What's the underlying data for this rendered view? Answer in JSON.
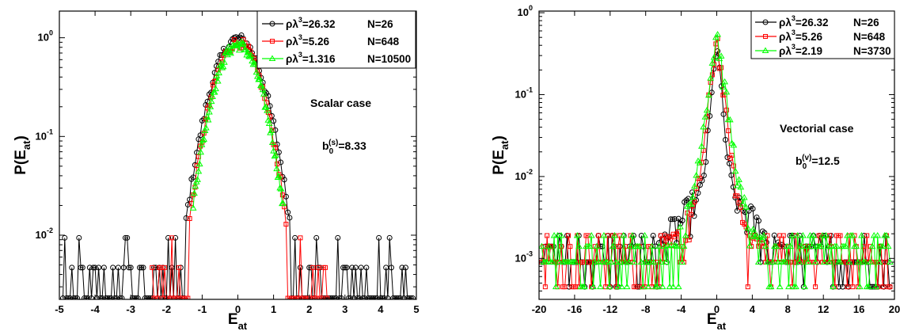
{
  "chart_data": [
    {
      "type": "scatter",
      "panel": "left",
      "xlabel": "E",
      "xlabel_sub": "at",
      "ylabel": "P(E",
      "ylabel_sub": "at",
      "ylabel_close": ")",
      "xlim": [
        -5,
        5
      ],
      "ylim_log10": [
        -2.65,
        0.27
      ],
      "y_scale": "log",
      "x_ticks": [
        "-5",
        "-4",
        "-3",
        "-2",
        "-1",
        "0",
        "1",
        "2",
        "3",
        "4",
        "5"
      ],
      "y_ticks": [
        {
          "base": "10",
          "exp": "0",
          "v": 0
        },
        {
          "base": "10",
          "exp": "-1",
          "v": -1
        },
        {
          "base": "10",
          "exp": "-2",
          "v": -2
        }
      ],
      "annotation": "Scalar case",
      "param": {
        "base": "b",
        "sup": "(s)",
        "sub": "0",
        "value": "=8.33"
      },
      "legend_position": "top-right",
      "legend": [
        {
          "label_a": "ρλ",
          "label_sup": "3",
          "label_b": "=26.32",
          "label_n": "N=26",
          "color": "#000000",
          "marker": "circle"
        },
        {
          "label_a": "ρλ",
          "label_sup": "3",
          "label_b": "=5.26",
          "label_n": "N=648",
          "color": "#ff0000",
          "marker": "square"
        },
        {
          "label_a": "ρλ",
          "label_sup": "3",
          "label_b": "=1.316",
          "label_n": "N=10500",
          "color": "#00ff00",
          "marker": "triangle"
        }
      ],
      "series": [
        {
          "name": "ρλ3=26.32 N=26",
          "color": "#000000",
          "marker": "circle",
          "sigma": 0.5,
          "peak": 0.98,
          "floor": 0.0023,
          "x_range": [
            -4.9,
            4.9
          ],
          "tail_density": 0.45,
          "step": 0.05
        },
        {
          "name": "ρλ3=5.26 N=648",
          "color": "#ff0000",
          "marker": "square",
          "sigma": 0.47,
          "peak": 0.9,
          "floor": 0.0023,
          "x_range": [
            -2.4,
            2.5
          ],
          "tail_density": 0.35,
          "step": 0.05
        },
        {
          "name": "ρλ3=1.316 N=10500",
          "color": "#00ff00",
          "marker": "triangle",
          "sigma": 0.46,
          "peak": 0.85,
          "floor": 0.0023,
          "x_range": [
            -1.25,
            1.3
          ],
          "tail_density": 0.1,
          "step": 0.03
        }
      ]
    },
    {
      "type": "scatter",
      "panel": "right",
      "xlabel": "E",
      "xlabel_sub": "at",
      "ylabel": "P(E",
      "ylabel_sub": "at",
      "ylabel_close": ")",
      "xlim": [
        -20,
        20
      ],
      "ylim_log10": [
        -3.5,
        0.02
      ],
      "y_scale": "log",
      "x_ticks": [
        "-20",
        "-16",
        "-12",
        "-8",
        "-4",
        "0",
        "4",
        "8",
        "12",
        "16",
        "20"
      ],
      "y_ticks": [
        {
          "base": "10",
          "exp": "0",
          "v": 0
        },
        {
          "base": "10",
          "exp": "-1",
          "v": -1
        },
        {
          "base": "10",
          "exp": "-2",
          "v": -2
        },
        {
          "base": "10",
          "exp": "-3",
          "v": -3
        }
      ],
      "annotation": "Vectorial case",
      "param": {
        "base": "b",
        "sup": "(v)",
        "sub": "0",
        "value": "=12.5"
      },
      "legend_position": "top-right",
      "legend": [
        {
          "label_a": "ρλ",
          "label_sup": "3",
          "label_b": "=26.32",
          "label_n": "N=26",
          "color": "#000000",
          "marker": "circle"
        },
        {
          "label_a": "ρλ",
          "label_sup": "3",
          "label_b": "=5.26",
          "label_n": "N=648",
          "color": "#ff0000",
          "marker": "square"
        },
        {
          "label_a": "ρλ",
          "label_sup": "3",
          "label_b": "=2.19",
          "label_n": "N=3730",
          "color": "#00ff00",
          "marker": "triangle"
        }
      ],
      "series": [
        {
          "name": "ρλ3=26.32 N=26",
          "color": "#000000",
          "marker": "circle",
          "lap": 0.32,
          "peak": 0.5,
          "tail": 0.0015,
          "tail_scale": 3.2,
          "floor": 0.00045,
          "x_range": [
            -19.7,
            19.5
          ],
          "step": 0.22
        },
        {
          "name": "ρλ3=5.26 N=648",
          "color": "#ff0000",
          "marker": "square",
          "lap": 0.45,
          "peak": 0.55,
          "tail": 0.0007,
          "tail_scale": 4.0,
          "floor": 0.00045,
          "x_range": [
            -19.7,
            19.5
          ],
          "step": 0.2
        },
        {
          "name": "ρλ3=2.19 N=3730",
          "color": "#00ff00",
          "marker": "triangle",
          "lap": 0.55,
          "peak": 0.6,
          "tail": 0.0004,
          "tail_scale": 5.5,
          "floor": 0.00045,
          "x_range": [
            -19.7,
            19.5
          ],
          "step": 0.2
        }
      ]
    }
  ]
}
